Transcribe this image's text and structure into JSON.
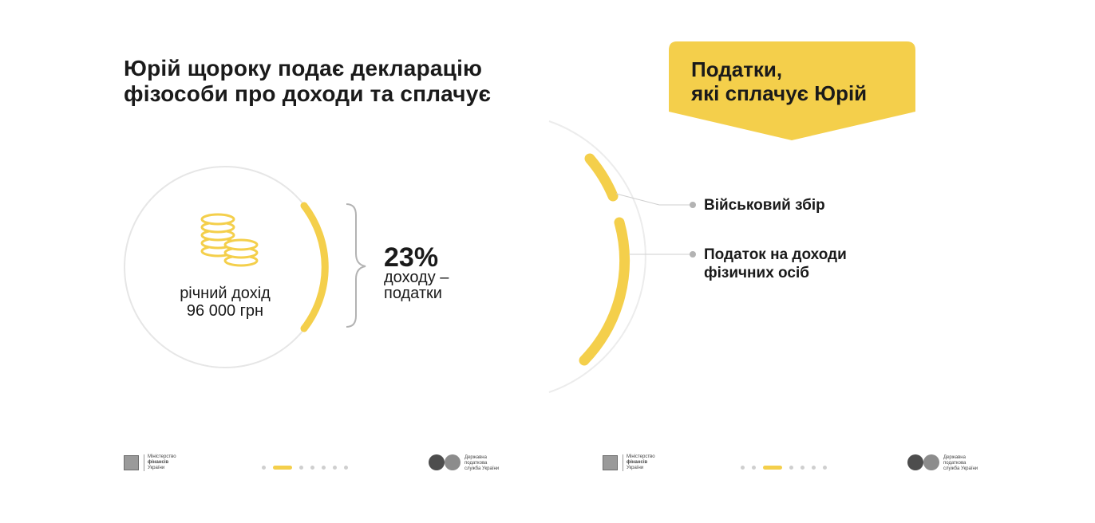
{
  "left_slide": {
    "title_line1": "Юрій щороку подає декларацію",
    "title_line2": "фізособи про доходи та сплачує",
    "income_label": "річний дохід",
    "income_value": "96 000 грн",
    "percent": "23%",
    "percent_sub_line1": "доходу –",
    "percent_sub_line2": "податки",
    "coins_icon": "coins-stack-icon"
  },
  "right_slide": {
    "banner_line1": "Податки,",
    "banner_line2": "які сплачує Юрій",
    "items": [
      {
        "label": "Військовий збір"
      },
      {
        "label_line1": "Податок на доходи",
        "label_line2": "фізичних осіб"
      }
    ]
  },
  "footer": {
    "minfin_line1": "Міністерство",
    "minfin_line2": "фінансів",
    "minfin_line3": "України",
    "dps_line1": "Державна",
    "dps_line2": "податкова",
    "dps_line3": "служба України",
    "left_active_page": 2,
    "right_active_page": 3,
    "pages": 7
  },
  "colors": {
    "accent": "#f4cf4b",
    "text": "#1a1a1a",
    "muted": "#b3b3b3",
    "ring": "#e6e6e6"
  }
}
